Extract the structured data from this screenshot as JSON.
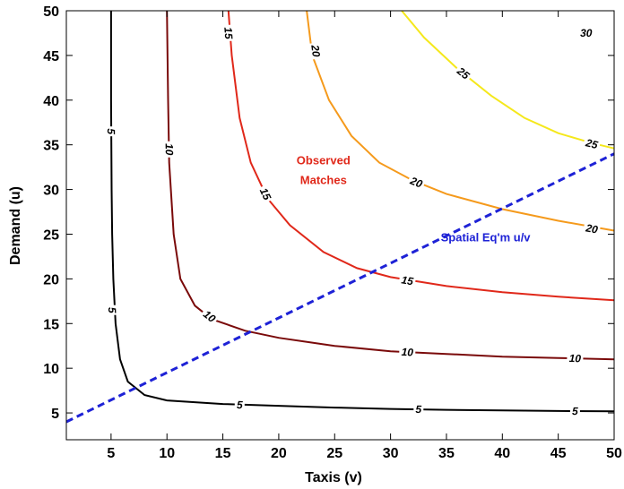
{
  "chart_data": {
    "type": "line",
    "title": "",
    "xlabel": "Taxis (v)",
    "ylabel": "Demand (u)",
    "xlim": [
      1,
      50
    ],
    "ylim": [
      2,
      50
    ],
    "xticks": [
      5,
      10,
      15,
      20,
      25,
      30,
      35,
      40,
      45,
      50
    ],
    "yticks": [
      5,
      10,
      15,
      20,
      25,
      30,
      35,
      40,
      45,
      50
    ],
    "grid": false,
    "contours": [
      {
        "level": "5",
        "color": "#000000",
        "points": [
          [
            5,
            50
          ],
          [
            5,
            40
          ],
          [
            5.05,
            30
          ],
          [
            5.1,
            25
          ],
          [
            5.2,
            20
          ],
          [
            5.4,
            15
          ],
          [
            5.8,
            11
          ],
          [
            6.5,
            8.5
          ],
          [
            8,
            7
          ],
          [
            10,
            6.4
          ],
          [
            15,
            6
          ],
          [
            20,
            5.8
          ],
          [
            25,
            5.6
          ],
          [
            30,
            5.45
          ],
          [
            35,
            5.35
          ],
          [
            40,
            5.28
          ],
          [
            45,
            5.22
          ],
          [
            50,
            5.18
          ]
        ],
        "labels": [
          [
            5,
            36.5
          ],
          [
            5.1,
            16.5
          ],
          [
            16.5,
            5.9
          ],
          [
            32.5,
            5.4
          ],
          [
            46.5,
            5.2
          ]
        ]
      },
      {
        "level": "10",
        "color": "#7a0a0a",
        "points": [
          [
            10,
            50
          ],
          [
            10.1,
            40
          ],
          [
            10.2,
            33
          ],
          [
            10.6,
            25
          ],
          [
            11.2,
            20
          ],
          [
            12.5,
            17
          ],
          [
            14,
            15.5
          ],
          [
            17,
            14.2
          ],
          [
            20,
            13.4
          ],
          [
            25,
            12.5
          ],
          [
            30,
            11.9
          ],
          [
            35,
            11.6
          ],
          [
            40,
            11.3
          ],
          [
            45,
            11.15
          ],
          [
            50,
            11.0
          ]
        ],
        "labels": [
          [
            10.2,
            34.5
          ],
          [
            13.8,
            15.8
          ],
          [
            31.5,
            11.8
          ],
          [
            46.5,
            11.1
          ]
        ]
      },
      {
        "level": "15",
        "color": "#e0281a",
        "points": [
          [
            15.5,
            50
          ],
          [
            15.8,
            45
          ],
          [
            16.5,
            38
          ],
          [
            17.5,
            33
          ],
          [
            19,
            29
          ],
          [
            21,
            26
          ],
          [
            24,
            23
          ],
          [
            27,
            21.2
          ],
          [
            30,
            20.2
          ],
          [
            35,
            19.2
          ],
          [
            40,
            18.5
          ],
          [
            45,
            18
          ],
          [
            50,
            17.6
          ]
        ],
        "labels": [
          [
            15.5,
            47.5
          ],
          [
            18.8,
            29.5
          ],
          [
            31.5,
            19.8
          ]
        ]
      },
      {
        "level": "20",
        "color": "#f59a1c",
        "points": [
          [
            22.5,
            50
          ],
          [
            23,
            45
          ],
          [
            24.5,
            40
          ],
          [
            26.5,
            36
          ],
          [
            29,
            33
          ],
          [
            32,
            31
          ],
          [
            35,
            29.5
          ],
          [
            40,
            27.8
          ],
          [
            45,
            26.5
          ],
          [
            50,
            25.4
          ]
        ],
        "labels": [
          [
            23.3,
            45.5
          ],
          [
            32.3,
            30.8
          ],
          [
            48,
            25.6
          ]
        ]
      },
      {
        "level": "25",
        "color": "#f5e81c",
        "points": [
          [
            31,
            50
          ],
          [
            33,
            47
          ],
          [
            36,
            43.5
          ],
          [
            39,
            40.5
          ],
          [
            42,
            38
          ],
          [
            45,
            36.3
          ],
          [
            48,
            35.2
          ],
          [
            50,
            34.6
          ]
        ],
        "labels": [
          [
            36.5,
            43
          ],
          [
            48,
            35.1
          ]
        ]
      },
      {
        "level": "30",
        "color": "#ffff00",
        "points": [],
        "labels": [
          [
            47.5,
            47.5
          ]
        ]
      }
    ],
    "series": [
      {
        "name": "Spatial Eq'm u/v",
        "color": "#1e22d6",
        "style": "dashed",
        "x": [
          1,
          50
        ],
        "y": [
          4,
          34
        ]
      }
    ],
    "annotations": [
      {
        "text": "Observed",
        "x": 24,
        "y": 32.8,
        "color": "#e0281a"
      },
      {
        "text": "Matches",
        "x": 24,
        "y": 30.6,
        "color": "#e0281a"
      },
      {
        "text": "Spatial Eq'm u/v",
        "x": 38.5,
        "y": 24.2,
        "color": "#1e22d6"
      }
    ]
  }
}
